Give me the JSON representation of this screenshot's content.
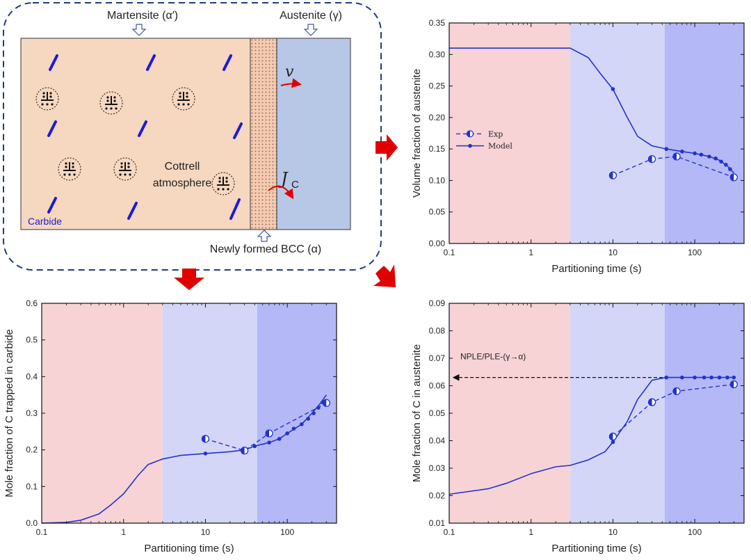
{
  "schematic": {
    "martensite_label": "Martensite (α′)",
    "austenite_label": "Austenite (γ)",
    "velocity_symbol": "v",
    "flux_symbol": "J",
    "flux_subscript": "C",
    "cottrell_label_1": "Cottrell",
    "cottrell_label_2": "atmosphere",
    "carbide_label": "Carbide",
    "bcc_label": "Newly formed BCC (α)",
    "colors": {
      "martensite": "#f6d7bf",
      "austenite": "#b7c8e6",
      "carbide": "#1a1adb",
      "frame": "#1f3c78",
      "arrow_red": "#e00000"
    }
  },
  "chart_data": [
    {
      "type": "line",
      "panel": "top-right",
      "xscale": "log",
      "xlim": [
        0.1,
        400
      ],
      "ylim": [
        0,
        0.35
      ],
      "xticks": [
        0.1,
        1,
        10,
        100
      ],
      "xtick_labels": [
        "0.1",
        "1",
        "10",
        "100"
      ],
      "yticks": [
        0,
        0.05,
        0.1,
        0.15,
        0.2,
        0.25,
        0.3,
        0.35
      ],
      "ytick_labels": [
        "0.00",
        "0.05",
        "0.10",
        "0.15",
        "0.20",
        "0.25",
        "0.30",
        "0.35"
      ],
      "xlabel": "Partitioning time (s)",
      "ylabel": "Volume fraction of austenite",
      "regions": [
        {
          "x0": 0.1,
          "x1": 3,
          "color": "#f7d3d6"
        },
        {
          "x0": 3,
          "x1": 43,
          "color": "#d4d6f8"
        },
        {
          "x0": 43,
          "x1": 400,
          "color": "#b4b8f6"
        }
      ],
      "legend": {
        "position": "middle-left",
        "exp_label": "Exp",
        "model_label": "Model"
      },
      "series": [
        {
          "name": "Model",
          "style": "solid",
          "x": [
            0.1,
            0.5,
            1,
            2,
            3,
            5,
            7,
            10,
            15,
            20,
            30,
            45,
            70,
            100,
            150,
            200,
            250,
            300
          ],
          "y": [
            0.31,
            0.31,
            0.31,
            0.31,
            0.31,
            0.295,
            0.27,
            0.245,
            0.2,
            0.17,
            0.155,
            0.15,
            0.146,
            0.143,
            0.138,
            0.132,
            0.123,
            0.112
          ]
        },
        {
          "name": "Model markers",
          "style": "markers",
          "x": [
            10,
            45,
            70,
            100,
            120,
            150,
            180,
            210,
            240,
            270
          ],
          "y": [
            0.245,
            0.15,
            0.146,
            0.143,
            0.141,
            0.138,
            0.135,
            0.13,
            0.125,
            0.118
          ]
        },
        {
          "name": "Exp",
          "style": "dashed",
          "x": [
            10,
            30,
            60,
            300
          ],
          "y": [
            0.108,
            0.134,
            0.138,
            0.105
          ]
        }
      ]
    },
    {
      "type": "line",
      "panel": "bottom-left",
      "xscale": "log",
      "xlim": [
        0.1,
        400
      ],
      "ylim": [
        0,
        0.6
      ],
      "xticks": [
        0.1,
        1,
        10,
        100
      ],
      "xtick_labels": [
        "0.1",
        "1",
        "10",
        "100"
      ],
      "yticks": [
        0,
        0.1,
        0.2,
        0.3,
        0.4,
        0.5,
        0.6
      ],
      "ytick_labels": [
        "0.0",
        "0.1",
        "0.2",
        "0.3",
        "0.4",
        "0.5",
        "0.6"
      ],
      "xlabel": "Partitioning time (s)",
      "ylabel": "Mole fraction of C trapped in carbide",
      "regions": [
        {
          "x0": 0.1,
          "x1": 3,
          "color": "#f7d3d6"
        },
        {
          "x0": 3,
          "x1": 43,
          "color": "#d4d6f8"
        },
        {
          "x0": 43,
          "x1": 400,
          "color": "#b4b8f6"
        }
      ],
      "series": [
        {
          "name": "Model",
          "style": "solid",
          "x": [
            0.1,
            0.2,
            0.3,
            0.5,
            0.7,
            1,
            1.5,
            2,
            3,
            5,
            10,
            20,
            30,
            40,
            60,
            80,
            100,
            150,
            200,
            250,
            300
          ],
          "y": [
            0,
            0.002,
            0.008,
            0.025,
            0.05,
            0.08,
            0.13,
            0.16,
            0.175,
            0.185,
            0.19,
            0.195,
            0.2,
            0.21,
            0.22,
            0.23,
            0.245,
            0.27,
            0.3,
            0.325,
            0.35
          ]
        },
        {
          "name": "Model markers",
          "style": "markers",
          "x": [
            10,
            30,
            40,
            60,
            80,
            100,
            120,
            150,
            180,
            210,
            240,
            270
          ],
          "y": [
            0.19,
            0.2,
            0.21,
            0.22,
            0.23,
            0.245,
            0.258,
            0.27,
            0.285,
            0.3,
            0.315,
            0.33
          ]
        },
        {
          "name": "Exp",
          "style": "dashed",
          "x": [
            10,
            30,
            60,
            300
          ],
          "y": [
            0.23,
            0.198,
            0.245,
            0.328
          ]
        }
      ]
    },
    {
      "type": "line",
      "panel": "bottom-right",
      "xscale": "log",
      "xlim": [
        0.1,
        400
      ],
      "ylim": [
        0.01,
        0.09
      ],
      "xticks": [
        0.1,
        1,
        10,
        100
      ],
      "xtick_labels": [
        "0.1",
        "1",
        "10",
        "100"
      ],
      "yticks": [
        0.01,
        0.02,
        0.03,
        0.04,
        0.05,
        0.06,
        0.07,
        0.08,
        0.09
      ],
      "ytick_labels": [
        "0.01",
        "0.02",
        "0.03",
        "0.04",
        "0.05",
        "0.06",
        "0.07",
        "0.08",
        "0.09"
      ],
      "xlabel": "Partitioning time (s)",
      "ylabel": "Mole fraction of C in austenite",
      "regions": [
        {
          "x0": 0.1,
          "x1": 3,
          "color": "#f7d3d6"
        },
        {
          "x0": 3,
          "x1": 43,
          "color": "#d4d6f8"
        },
        {
          "x0": 43,
          "x1": 400,
          "color": "#b4b8f6"
        }
      ],
      "reference_line": {
        "y": 0.063,
        "label": "NPLE/PLE-(γ→α)"
      },
      "series": [
        {
          "name": "Model",
          "style": "solid",
          "x": [
            0.1,
            0.3,
            0.5,
            1,
            2,
            3,
            5,
            8,
            10,
            15,
            20,
            30,
            45,
            70,
            100,
            150,
            200,
            300
          ],
          "y": [
            0.0205,
            0.0225,
            0.0245,
            0.028,
            0.0305,
            0.031,
            0.033,
            0.036,
            0.0395,
            0.047,
            0.055,
            0.062,
            0.063,
            0.063,
            0.063,
            0.063,
            0.063,
            0.063
          ]
        },
        {
          "name": "Model markers",
          "style": "markers",
          "x": [
            10,
            45,
            70,
            100,
            130,
            160,
            200,
            250,
            300
          ],
          "y": [
            0.0395,
            0.063,
            0.063,
            0.063,
            0.063,
            0.063,
            0.063,
            0.063,
            0.063
          ]
        },
        {
          "name": "Exp",
          "style": "dashed",
          "x": [
            10,
            30,
            60,
            300
          ],
          "y": [
            0.0415,
            0.054,
            0.058,
            0.0605
          ]
        }
      ]
    }
  ]
}
